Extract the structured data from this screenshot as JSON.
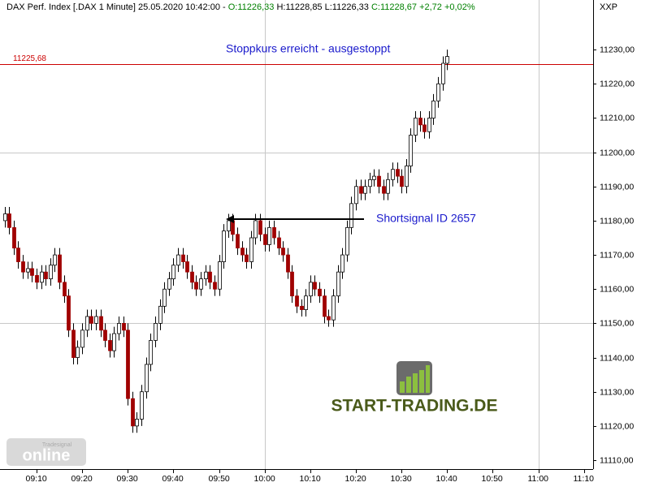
{
  "chart_data": {
    "type": "candlestick",
    "header": [
      {
        "text": "DAX Perf. Index [.DAX  1 Minute] 25.05.2020 10:42:00 -",
        "color": "#000000"
      },
      {
        "text": "O:11226,33",
        "color": "#008000"
      },
      {
        "text": "H:11228,85",
        "color": "#000000"
      },
      {
        "text": "L:11226,33",
        "color": "#000000"
      },
      {
        "text": "C:11228,67",
        "color": "#008000"
      },
      {
        "text": "+2,72",
        "color": "#008000"
      },
      {
        "text": "+0,02%",
        "color": "#008000"
      }
    ],
    "axis_title": "XXP",
    "x": [
      "09:03",
      "09:04",
      "09:05",
      "09:06",
      "09:07",
      "09:08",
      "09:09",
      "09:10",
      "09:11",
      "09:12",
      "09:13",
      "09:14",
      "09:15",
      "09:16",
      "09:17",
      "09:18",
      "09:19",
      "09:20",
      "09:21",
      "09:22",
      "09:23",
      "09:24",
      "09:25",
      "09:26",
      "09:27",
      "09:28",
      "09:29",
      "09:30",
      "09:31",
      "09:32",
      "09:33",
      "09:34",
      "09:35",
      "09:36",
      "09:37",
      "09:38",
      "09:39",
      "09:40",
      "09:41",
      "09:42",
      "09:43",
      "09:44",
      "09:45",
      "09:46",
      "09:47",
      "09:48",
      "09:49",
      "09:50",
      "09:51",
      "09:52",
      "09:53",
      "09:54",
      "09:55",
      "09:56",
      "09:57",
      "09:58",
      "09:59",
      "10:00",
      "10:01",
      "10:02",
      "10:03",
      "10:04",
      "10:05",
      "10:06",
      "10:07",
      "10:08",
      "10:09",
      "10:10",
      "10:11",
      "10:12",
      "10:13",
      "10:14",
      "10:15",
      "10:16",
      "10:17",
      "10:18",
      "10:19",
      "10:20",
      "10:21",
      "10:22",
      "10:23",
      "10:24",
      "10:25",
      "10:26",
      "10:27",
      "10:28",
      "10:29",
      "10:30",
      "10:31",
      "10:32",
      "10:33",
      "10:34",
      "10:35",
      "10:36",
      "10:37",
      "10:38",
      "10:39",
      "10:40"
    ],
    "open": [
      11180,
      11182,
      11178,
      11172,
      11168,
      11165,
      11166,
      11164,
      11162,
      11165,
      11163,
      11167,
      11170,
      11162,
      11158,
      11148,
      11140,
      11143,
      11148,
      11152,
      11150,
      11152,
      11148,
      11145,
      11142,
      11147,
      11150,
      11148,
      11128,
      11120,
      11122,
      11130,
      11138,
      11145,
      11150,
      11155,
      11160,
      11163,
      11167,
      11170,
      11168,
      11165,
      11162,
      11160,
      11163,
      11165,
      11162,
      11160,
      11168,
      11177,
      11180,
      11176,
      11172,
      11170,
      11168,
      11175,
      11180,
      11176,
      11173,
      11178,
      11175,
      11172,
      11170,
      11165,
      11158,
      11155,
      11154,
      11158,
      11162,
      11160,
      11158,
      11152,
      11151,
      11158,
      11165,
      11170,
      11178,
      11185,
      11190,
      11188,
      11190,
      11192,
      11193,
      11190,
      11188,
      11192,
      11195,
      11193,
      11190,
      11196,
      11205,
      11210,
      11208,
      11206,
      11210,
      11215,
      11220,
      11226
    ],
    "high": [
      11184,
      11184,
      11180,
      11174,
      11170,
      11168,
      11168,
      11166,
      11167,
      11167,
      11169,
      11172,
      11172,
      11164,
      11160,
      11150,
      11145,
      11150,
      11154,
      11154,
      11154,
      11154,
      11150,
      11147,
      11149,
      11152,
      11152,
      11150,
      11130,
      11124,
      11132,
      11140,
      11147,
      11152,
      11157,
      11162,
      11165,
      11169,
      11172,
      11172,
      11170,
      11167,
      11164,
      11165,
      11167,
      11167,
      11164,
      11170,
      11179,
      11182,
      11182,
      11178,
      11174,
      11172,
      11177,
      11182,
      11182,
      11178,
      11180,
      11180,
      11177,
      11174,
      11172,
      11167,
      11160,
      11157,
      11160,
      11164,
      11164,
      11162,
      11160,
      11154,
      11160,
      11167,
      11172,
      11180,
      11187,
      11192,
      11192,
      11192,
      11194,
      11195,
      11195,
      11192,
      11194,
      11197,
      11197,
      11195,
      11198,
      11207,
      11212,
      11212,
      11210,
      11212,
      11217,
      11222,
      11228,
      11230
    ],
    "low": [
      11178,
      11176,
      11170,
      11166,
      11163,
      11163,
      11162,
      11160,
      11160,
      11161,
      11161,
      11165,
      11160,
      11156,
      11146,
      11138,
      11138,
      11141,
      11146,
      11148,
      11148,
      11146,
      11143,
      11140,
      11140,
      11145,
      11146,
      11126,
      11118,
      11118,
      11120,
      11128,
      11136,
      11143,
      11148,
      11153,
      11158,
      11161,
      11165,
      11166,
      11163,
      11160,
      11158,
      11158,
      11161,
      11160,
      11158,
      11158,
      11166,
      11175,
      11174,
      11170,
      11168,
      11166,
      11166,
      11173,
      11174,
      11171,
      11171,
      11173,
      11170,
      11168,
      11163,
      11156,
      11153,
      11152,
      11152,
      11156,
      11158,
      11156,
      11150,
      11149,
      11149,
      11156,
      11163,
      11168,
      11176,
      11183,
      11186,
      11186,
      11188,
      11190,
      11188,
      11186,
      11186,
      11190,
      11191,
      11188,
      11188,
      11194,
      11203,
      11206,
      11204,
      11204,
      11208,
      11213,
      11218,
      11224
    ],
    "close": [
      11182,
      11178,
      11172,
      11168,
      11165,
      11166,
      11164,
      11162,
      11165,
      11163,
      11167,
      11170,
      11162,
      11158,
      11148,
      11140,
      11143,
      11148,
      11152,
      11150,
      11152,
      11148,
      11145,
      11142,
      11147,
      11150,
      11148,
      11128,
      11120,
      11122,
      11130,
      11138,
      11145,
      11150,
      11155,
      11160,
      11163,
      11167,
      11170,
      11168,
      11165,
      11162,
      11160,
      11163,
      11165,
      11162,
      11160,
      11168,
      11177,
      11180,
      11176,
      11172,
      11170,
      11168,
      11175,
      11180,
      11176,
      11173,
      11178,
      11175,
      11172,
      11170,
      11165,
      11158,
      11155,
      11154,
      11158,
      11162,
      11160,
      11158,
      11152,
      11151,
      11158,
      11165,
      11170,
      11178,
      11185,
      11190,
      11188,
      11190,
      11192,
      11193,
      11190,
      11188,
      11192,
      11195,
      11193,
      11190,
      11196,
      11205,
      11210,
      11208,
      11206,
      11210,
      11215,
      11220,
      11226,
      11228
    ],
    "up_color": "#ffffff",
    "down_color": "#a00000",
    "xlim": [
      -1,
      129
    ],
    "xticks": [
      {
        "value": 7,
        "label": "09:10"
      },
      {
        "value": 17,
        "label": "09:20"
      },
      {
        "value": 27,
        "label": "09:30"
      },
      {
        "value": 37,
        "label": "09:40"
      },
      {
        "value": 47,
        "label": "09:50"
      },
      {
        "value": 57,
        "label": "10:00"
      },
      {
        "value": 67,
        "label": "10:10"
      },
      {
        "value": 77,
        "label": "10:20"
      },
      {
        "value": 87,
        "label": "10:30"
      },
      {
        "value": 97,
        "label": "10:40"
      },
      {
        "value": 107,
        "label": "10:50"
      },
      {
        "value": 117,
        "label": "11:00"
      },
      {
        "value": 127,
        "label": "11:10"
      }
    ],
    "ylim": [
      11107.4,
      11244.5
    ],
    "yticks": [
      {
        "value": 11110,
        "label": "11110,00"
      },
      {
        "value": 11120,
        "label": "11120,00"
      },
      {
        "value": 11130,
        "label": "11130,00"
      },
      {
        "value": 11140,
        "label": "11140,00"
      },
      {
        "value": 11150,
        "label": "11150,00"
      },
      {
        "value": 11160,
        "label": "11160,00"
      },
      {
        "value": 11170,
        "label": "11170,00"
      },
      {
        "value": 11180,
        "label": "11180,00"
      },
      {
        "value": 11190,
        "label": "11190,00"
      },
      {
        "value": 11200,
        "label": "11200,00"
      },
      {
        "value": 11210,
        "label": "11210,00"
      },
      {
        "value": 11220,
        "label": "11220,00"
      },
      {
        "value": 11230,
        "label": "11230,00"
      }
    ],
    "grid_x": [
      57,
      117
    ],
    "grid_y": [
      11150,
      11200
    ],
    "stop_level": {
      "value": 11225.68,
      "label": "11225,68",
      "color": "#cc0000"
    },
    "annotations": [
      {
        "text": "Stoppkurs erreicht - ausgestoppt",
        "color": "#1a1acc"
      },
      {
        "text": "Shortsignal ID 2657",
        "color": "#1a1acc"
      }
    ],
    "logo": "START-TRADING.DE",
    "watermark": {
      "brand": "Tradesignal",
      "word": "online"
    }
  }
}
